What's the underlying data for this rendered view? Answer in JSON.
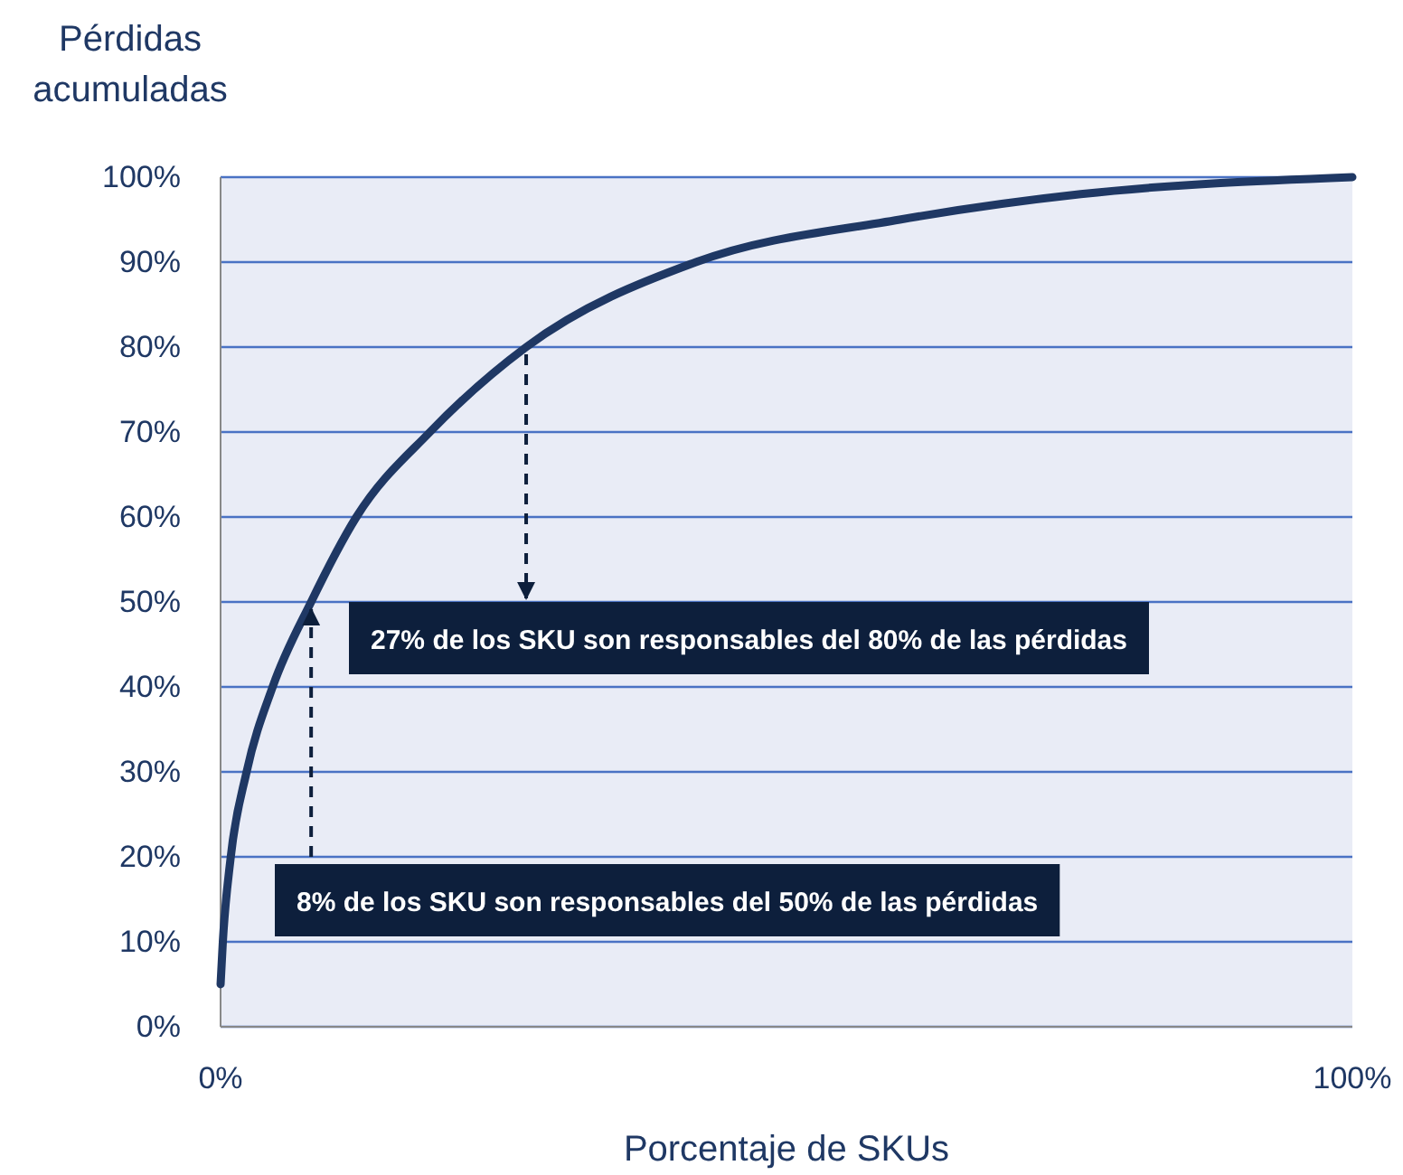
{
  "chart_data": {
    "type": "line",
    "ylabel": "Pérdidas acumuladas",
    "xlabel": "Porcentaje de SKUs",
    "x": [
      0,
      0.2,
      0.9,
      2.3,
      4.6,
      8,
      12,
      18.5,
      27,
      42,
      60,
      76,
      100
    ],
    "series": [
      {
        "color": "#1f3864",
        "values": [
          5,
          10,
          20,
          30,
          40,
          50,
          60,
          70,
          80,
          90,
          95,
          98,
          100
        ]
      }
    ],
    "xlim": [
      0,
      100
    ],
    "xticks": [
      {
        "value": 0,
        "label": "0%"
      },
      {
        "value": 100,
        "label": "100%"
      }
    ],
    "ylim": [
      0,
      100
    ],
    "yticks": [
      {
        "value": 0,
        "label": "0%"
      },
      {
        "value": 10,
        "label": "10%"
      },
      {
        "value": 20,
        "label": "20%"
      },
      {
        "value": 30,
        "label": "30%"
      },
      {
        "value": 40,
        "label": "40%"
      },
      {
        "value": 50,
        "label": "50%"
      },
      {
        "value": 60,
        "label": "60%"
      },
      {
        "value": 70,
        "label": "70%"
      },
      {
        "value": 80,
        "label": "80%"
      },
      {
        "value": 90,
        "label": "90%"
      },
      {
        "value": 100,
        "label": "100%"
      }
    ],
    "grid": "y",
    "marker": "none",
    "line_style": "solid",
    "annotations": [
      {
        "text": "27% de los SKU son responsables del 80% de las pérdidas",
        "x": 27,
        "y": 80
      },
      {
        "text": "8% de los SKU son responsables del 50% de las pérdidas",
        "x": 8,
        "y": 50
      }
    ]
  }
}
